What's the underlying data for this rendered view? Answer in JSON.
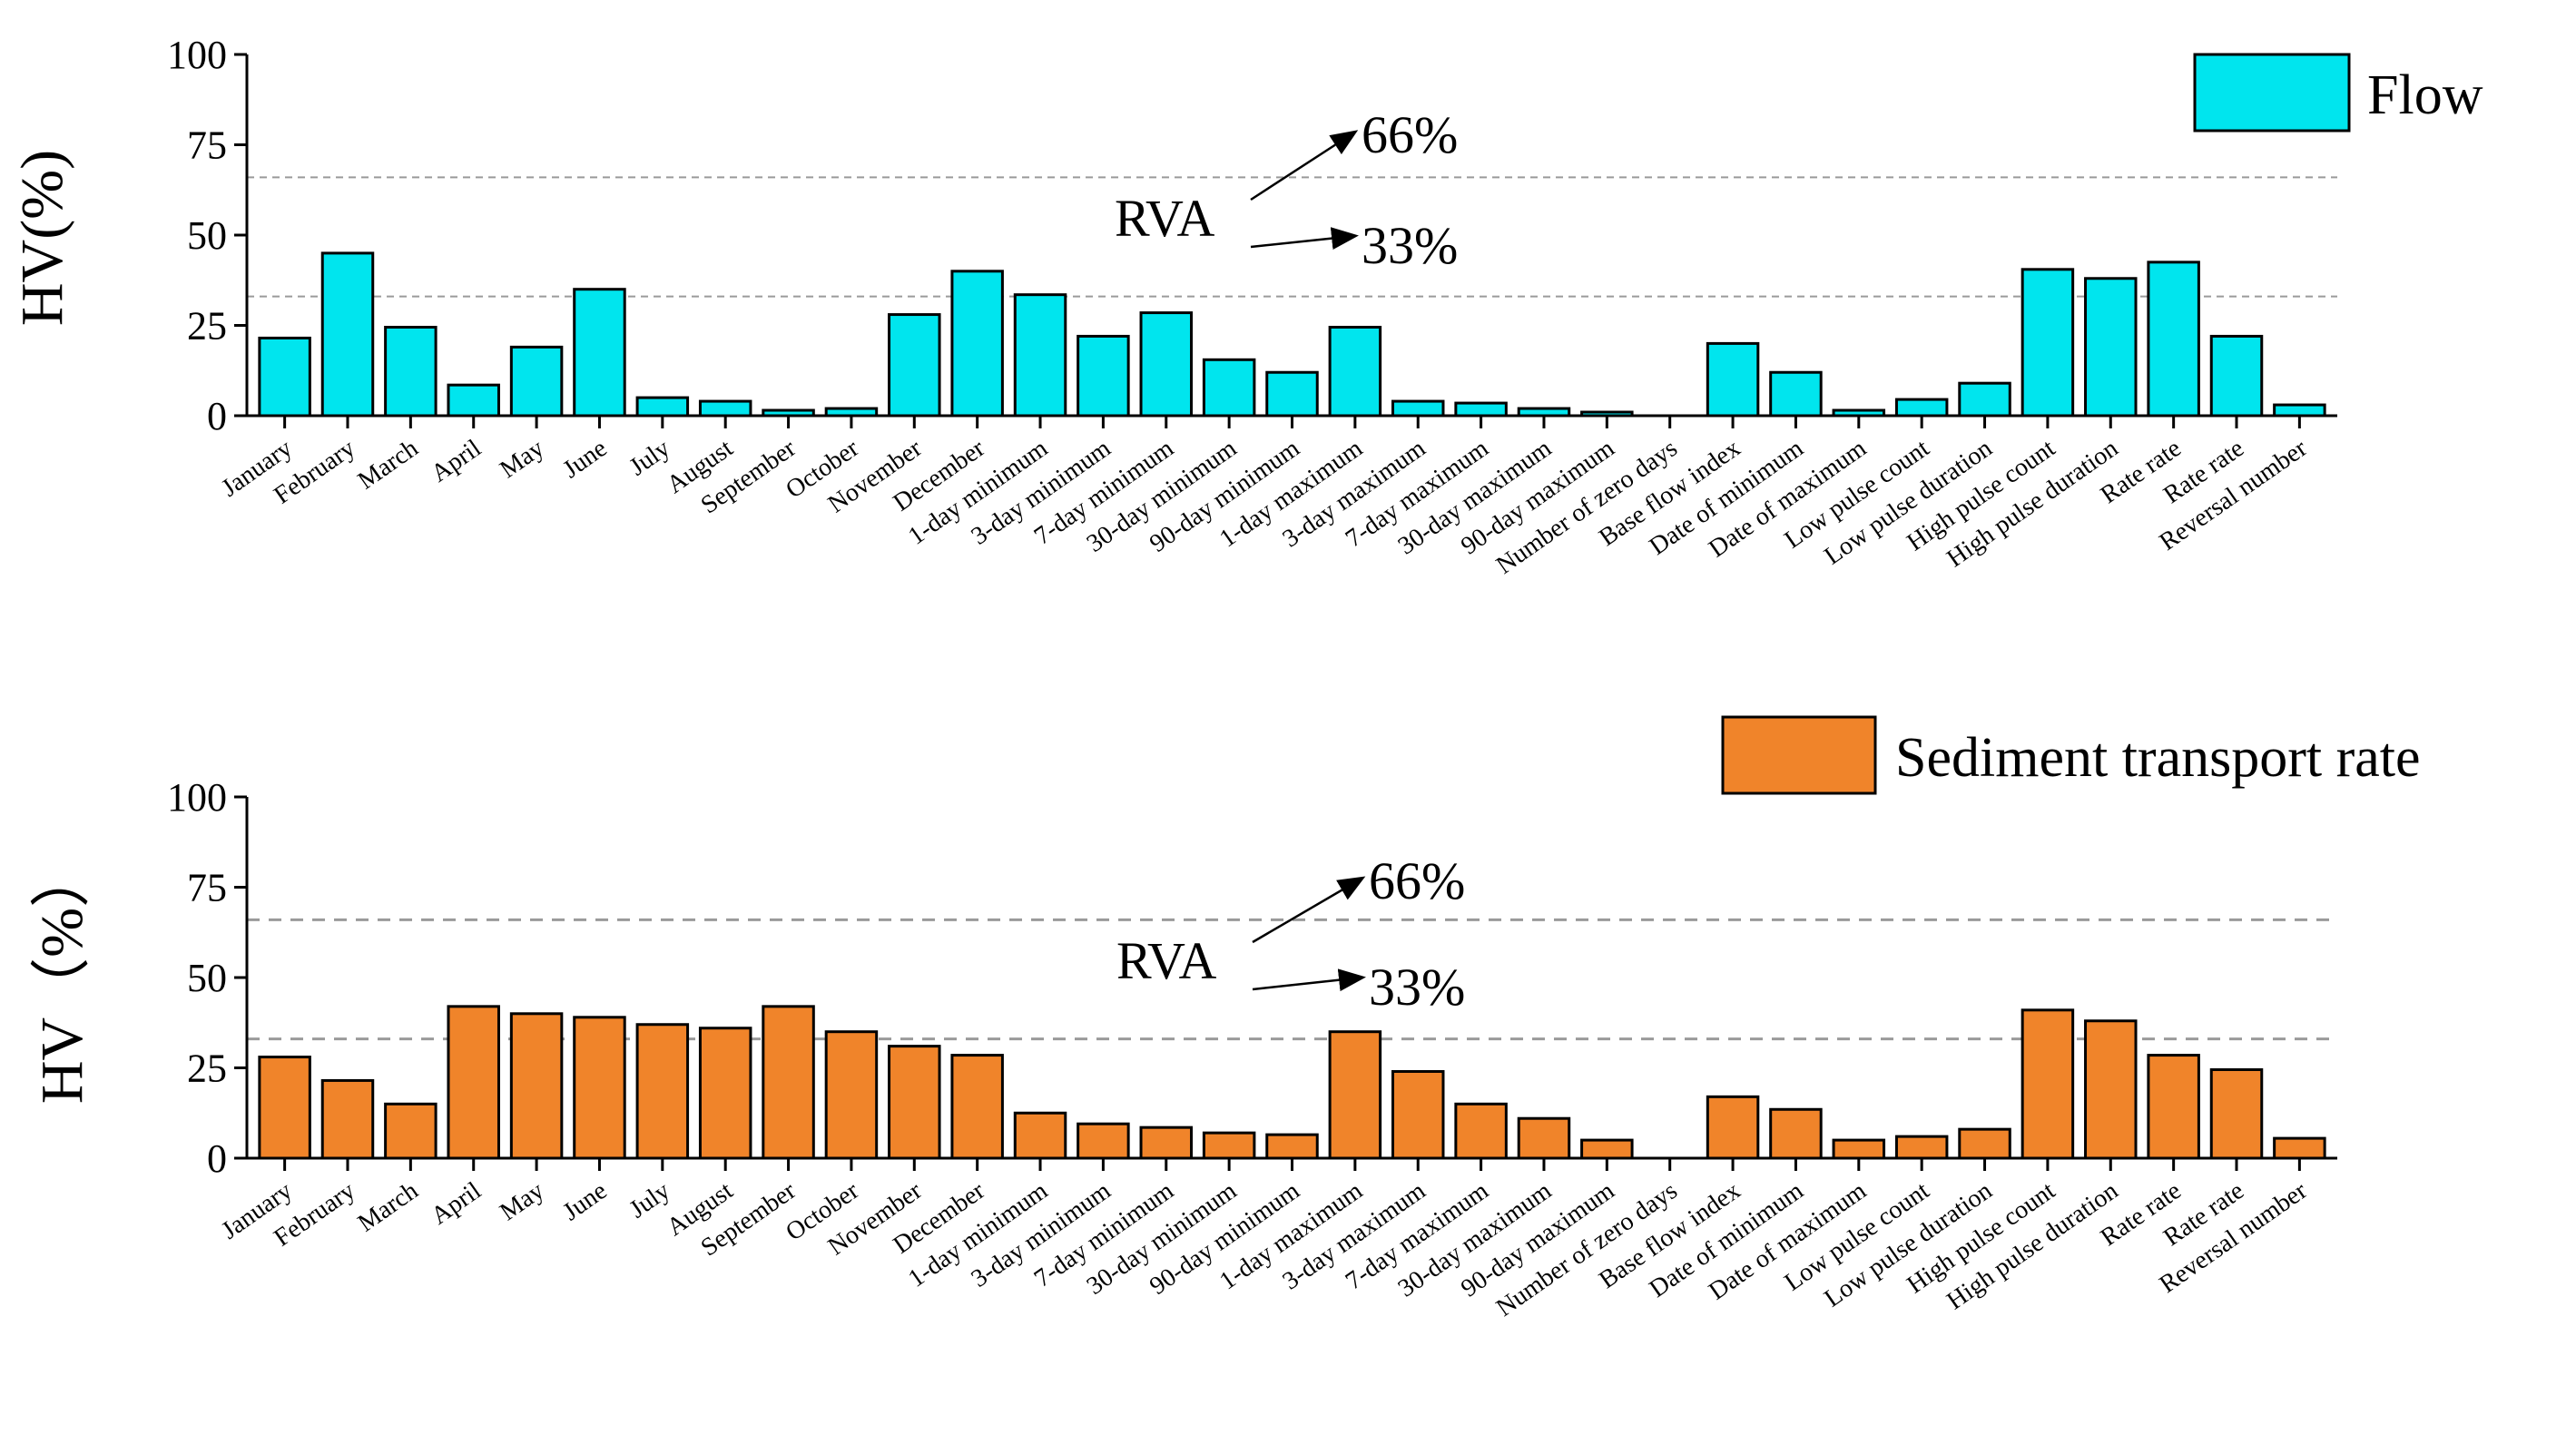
{
  "chart_data": [
    {
      "type": "bar",
      "title": "",
      "xlabel": "",
      "ylabel": "HV(%)",
      "ylim": [
        0,
        100
      ],
      "yticks": [
        "0",
        "25",
        "50",
        "75",
        "100"
      ],
      "legend": {
        "label": "Flow",
        "placement": "top-right"
      },
      "bar_color": "#00E5EE",
      "grid": false,
      "reference_lines": [
        33,
        66
      ],
      "annotations": {
        "rva": "RVA",
        "upper": "66%",
        "lower": "33%"
      },
      "categories": [
        "January",
        "February",
        "March",
        "April",
        "May",
        "June",
        "July",
        "August",
        "September",
        "October",
        "November",
        "December",
        "1-day minimum",
        "3-day minimum",
        "7-day minimum",
        "30-day minimum",
        "90-day minimum",
        "1-day maximum",
        "3-day maximum",
        "7-day maximum",
        "30-day maximum",
        "90-day maximum",
        "Number of zero days",
        "Base flow index",
        "Date of minimum",
        "Date of maximum",
        "Low pulse count",
        "Low pulse duration",
        "High pulse count",
        "High pulse duration",
        "Rate rate",
        "Rate rate",
        "Reversal number"
      ],
      "values": [
        21.5,
        45,
        24.5,
        8.5,
        19,
        35,
        5,
        4,
        1.5,
        2,
        28,
        40,
        33.5,
        22,
        28.5,
        15.5,
        12,
        24.5,
        4,
        3.5,
        2,
        1,
        0,
        20,
        12,
        1.5,
        4.5,
        9,
        40.5,
        38,
        42.5,
        22,
        3
      ]
    },
    {
      "type": "bar",
      "title": "",
      "xlabel": "",
      "ylabel": "HV（%）",
      "ylim": [
        0,
        100
      ],
      "yticks": [
        "0",
        "25",
        "50",
        "75",
        "100"
      ],
      "legend": {
        "label": "Sediment transport rate",
        "placement": "top-right"
      },
      "bar_color": "#F0842A",
      "grid": false,
      "reference_lines": [
        33,
        66
      ],
      "annotations": {
        "rva": "RVA",
        "upper": "66%",
        "lower": "33%"
      },
      "categories": [
        "January",
        "February",
        "March",
        "April",
        "May",
        "June",
        "July",
        "August",
        "September",
        "October",
        "November",
        "December",
        "1-day minimum",
        "3-day minimum",
        "7-day minimum",
        "30-day minimum",
        "90-day minimum",
        "1-day maximum",
        "3-day maximum",
        "7-day maximum",
        "30-day maximum",
        "90-day maximum",
        "Number of zero days",
        "Base flow index",
        "Date of minimum",
        "Date of maximum",
        "Low pulse count",
        "Low pulse duration",
        "High pulse count",
        "High pulse duration",
        "Rate rate",
        "Rate rate",
        "Reversal number"
      ],
      "values": [
        28,
        21.5,
        15,
        42,
        40,
        39,
        37,
        36,
        42,
        35,
        31,
        28.5,
        12.5,
        9.5,
        8.5,
        7,
        6.5,
        35,
        24,
        15,
        11,
        5,
        0,
        17,
        13.5,
        5,
        6,
        8,
        41,
        38,
        28.5,
        24.5,
        5.5
      ]
    }
  ]
}
